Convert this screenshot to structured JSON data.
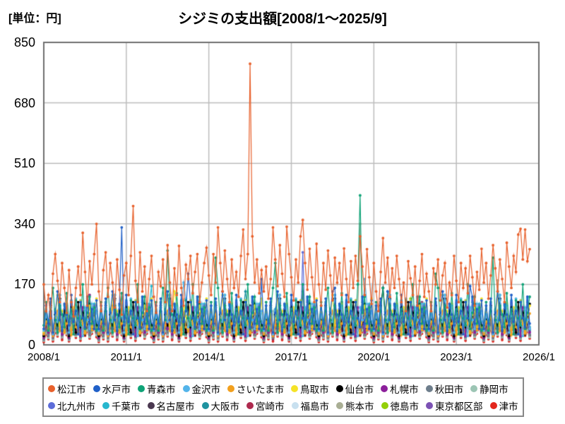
{
  "page": {
    "unit_label": "[単位：円]",
    "title": "シジミの支出額[2008/1～2025/9]"
  },
  "colors": {
    "grid": "#BDBDBD",
    "frame": "#6F6F6F",
    "legend_border": "#888888",
    "text": "#000000"
  },
  "chart_data": {
    "type": "line",
    "title": "シジミの支出額[2008/1～2025/9]",
    "ylabel": "円",
    "x_start": "2008/1",
    "x_end": "2025/9",
    "n_points": 213,
    "x_axis_total_months": 216,
    "x_ticks": [
      "2008/1",
      "2011/1",
      "2014/1",
      "2017/1",
      "2020/1",
      "2023/1",
      "2026/1"
    ],
    "x_tick_months": [
      0,
      36,
      72,
      108,
      144,
      180,
      216
    ],
    "y_ticks": [
      0,
      170,
      340,
      510,
      680,
      850
    ],
    "ylim": [
      0,
      850
    ],
    "grid": true,
    "legend_position": "bottom",
    "legend_rows": [
      [
        0,
        1,
        2,
        3,
        4,
        5,
        6,
        7,
        8,
        9
      ],
      [
        10,
        11,
        12,
        13,
        14,
        15,
        16,
        17,
        18,
        19
      ]
    ],
    "series": [
      {
        "name": "松江市",
        "color": "#E8612C",
        "values": [
          170,
          95,
          140,
          75,
          200,
          255,
          180,
          120,
          230,
          160,
          90,
          210,
          120,
          80,
          160,
          220,
          140,
          315,
          205,
          110,
          235,
          170,
          255,
          340,
          150,
          95,
          210,
          260,
          135,
          230,
          175,
          105,
          240,
          155,
          85,
          195,
          230,
          140,
          250,
          390,
          180,
          120,
          260,
          150,
          220,
          95,
          185,
          250,
          135,
          90,
          205,
          165,
          240,
          120,
          280,
          175,
          95,
          215,
          140,
          278,
          160,
          110,
          225,
          185,
          250,
          145,
          205,
          255,
          120,
          175,
          230,
          273,
          195,
          140,
          255,
          175,
          330,
          230,
          150,
          265,
          185,
          120,
          240,
          160,
          205,
          135,
          250,
          324,
          185,
          255,
          790,
          305,
          175,
          240,
          145,
          210,
          150,
          220,
          130,
          185,
          330,
          240,
          165,
          280,
          200,
          135,
          332,
          255,
          190,
          125,
          240,
          175,
          305,
          351,
          230,
          155,
          270,
          190,
          120,
          284,
          170,
          110,
          230,
          155,
          265,
          195,
          125,
          245,
          175,
          230,
          140,
          271,
          185,
          120,
          235,
          160,
          250,
          180,
          305,
          220,
          140,
          269,
          190,
          115,
          230,
          150,
          95,
          205,
          300,
          175,
          245,
          135,
          215,
          160,
          250,
          185,
          120,
          175,
          95,
          235,
          187,
          140,
          220,
          110,
          180,
          255,
          135,
          200,
          150,
          95,
          215,
          170,
          240,
          125,
          195,
          230,
          105,
          175,
          140,
          250,
          180,
          120,
          230,
          160,
          215,
          145,
          250,
          190,
          110,
          205,
          155,
          270,
          175,
          230,
          130,
          195,
          280,
          215,
          150,
          240,
          185,
          120,
          287,
          220,
          160,
          250,
          205,
          310,
          326,
          240,
          324,
          235,
          269
        ]
      },
      {
        "name": "水戸市",
        "color": "#2060C8",
        "pattern": [
          45,
          110,
          60,
          130,
          35,
          90,
          150,
          70,
          40,
          115,
          85,
          55,
          140,
          65,
          95,
          30,
          120,
          75,
          50,
          135,
          60,
          100,
          45,
          125
        ],
        "spikes": {
          "34": 330,
          "63": 200,
          "95": 185,
          "127": 160,
          "186": 165
        }
      },
      {
        "name": "青森市",
        "color": "#0FA377",
        "pattern": [
          55,
          120,
          40,
          95,
          160,
          70,
          35,
          110,
          85,
          50,
          145,
          65,
          100,
          30,
          125,
          75,
          55,
          170,
          45,
          90,
          135,
          60,
          105,
          40
        ],
        "spikes": {
          "54": 265,
          "75": 245,
          "101": 230,
          "138": 420,
          "171": 200,
          "196": 245
        }
      },
      {
        "name": "金沢市",
        "color": "#53B4EA",
        "pattern": [
          40,
          85,
          55,
          120,
          30,
          95,
          65,
          140,
          45,
          75,
          110,
          35,
          90,
          60,
          130,
          50,
          80,
          25,
          105,
          70,
          45,
          115,
          60,
          95
        ],
        "spikes": {
          "61": 175,
          "140": 185
        }
      },
      {
        "name": "さいたま市",
        "color": "#F2A01E",
        "pattern": [
          30,
          65,
          45,
          85,
          25,
          55,
          95,
          40,
          70,
          35,
          60,
          80,
          28,
          90,
          50,
          38,
          75,
          58,
          32,
          68,
          88,
          42,
          62,
          48
        ],
        "spikes": {
          "30": 110
        }
      },
      {
        "name": "鳥取市",
        "color": "#F5E327",
        "pattern": [
          35,
          90,
          50,
          120,
          35,
          75,
          140,
          55,
          95,
          40,
          115,
          65,
          30,
          105,
          80,
          45,
          125,
          60,
          35,
          85,
          110,
          50,
          70,
          130
        ],
        "spikes": {
          "57": 150
        }
      },
      {
        "name": "仙台市",
        "color": "#000000",
        "pattern": [
          25,
          70,
          45,
          110,
          30,
          85,
          55,
          130,
          40,
          95,
          60,
          25,
          105,
          75,
          35,
          120,
          50,
          90,
          30,
          65,
          115,
          45,
          80,
          55
        ],
        "spikes": {
          "148": 160
        }
      },
      {
        "name": "札幌市",
        "color": "#8C1F9B",
        "pattern": [
          20,
          60,
          35,
          90,
          25,
          70,
          45,
          110,
          30,
          80,
          55,
          20,
          95,
          65,
          40,
          85,
          25,
          105,
          50,
          75,
          35,
          60,
          90,
          45
        ],
        "spikes": {
          "20": 140
        }
      },
      {
        "name": "秋田市",
        "color": "#6E7E8C",
        "pattern": [
          15,
          45,
          25,
          65,
          20,
          50,
          35,
          80,
          28,
          55,
          40,
          18,
          70,
          48,
          30,
          60,
          22,
          75,
          38,
          52,
          28,
          45,
          65,
          35
        ],
        "spikes": {
          "130": 120
        }
      },
      {
        "name": "静岡市",
        "color": "#9CC5B4",
        "pattern": [
          12,
          35,
          20,
          50,
          15,
          40,
          28,
          60,
          22,
          45,
          32,
          14,
          55,
          38,
          25,
          48,
          18,
          58,
          30,
          42,
          22,
          36,
          52,
          28
        ],
        "spikes": {
          "100": 95
        }
      },
      {
        "name": "北九州市",
        "color": "#5C6CD9",
        "pattern": [
          30,
          80,
          45,
          115,
          35,
          95,
          60,
          130,
          40,
          100,
          70,
          30,
          120,
          85,
          50,
          105,
          38,
          90,
          55,
          125,
          45,
          75,
          110,
          60
        ],
        "spikes": {
          "113": 260
        }
      },
      {
        "name": "千葉市",
        "color": "#27B7CE",
        "pattern": [
          35,
          85,
          50,
          120,
          30,
          100,
          65,
          140,
          45,
          110,
          75,
          35,
          125,
          90,
          55,
          105,
          40,
          95,
          60,
          130,
          50,
          80,
          115,
          65
        ],
        "spikes": {
          "47": 165,
          "150": 150
        }
      },
      {
        "name": "名古屋市",
        "color": "#4A3850",
        "pattern": [
          15,
          50,
          30,
          70,
          20,
          55,
          40,
          85,
          25,
          60,
          45,
          18,
          75,
          52,
          32,
          65,
          22,
          80,
          42,
          58,
          28,
          48,
          68,
          38
        ],
        "spikes": {
          "90": 110
        }
      },
      {
        "name": "大阪市",
        "color": "#1F93A0",
        "pattern": [
          30,
          75,
          45,
          105,
          25,
          85,
          55,
          125,
          40,
          95,
          65,
          30,
          115,
          80,
          48,
          100,
          35,
          90,
          58,
          120,
          42,
          70,
          108,
          55
        ],
        "spikes": {
          "88": 150
        }
      },
      {
        "name": "宮崎市",
        "color": "#AE2A4E",
        "pattern": [
          12,
          40,
          22,
          60,
          15,
          48,
          32,
          75,
          20,
          52,
          38,
          14,
          65,
          45,
          28,
          58,
          18,
          70,
          35,
          50,
          25,
          42,
          62,
          30
        ],
        "spikes": {
          "165": 120
        }
      },
      {
        "name": "福島市",
        "color": "#C8E0EF",
        "pattern": [
          18,
          55,
          30,
          80,
          22,
          60,
          42,
          95,
          28,
          68,
          48,
          20,
          85,
          58,
          35,
          72,
          25,
          90,
          45,
          62,
          30,
          52,
          78,
          40
        ],
        "spikes": {
          "143": 170
        }
      },
      {
        "name": "熊本市",
        "color": "#A9AE94",
        "pattern": [
          15,
          48,
          28,
          68,
          18,
          55,
          38,
          85,
          24,
          60,
          44,
          16,
          75,
          52,
          32,
          65,
          20,
          80,
          40,
          56,
          26,
          46,
          70,
          34
        ],
        "spikes": {
          "138": 340,
          "198": 181
        }
      },
      {
        "name": "徳島市",
        "color": "#93CF08",
        "pattern": [
          18,
          52,
          30,
          75,
          20,
          58,
          40,
          90,
          26,
          64,
          46,
          18,
          80,
          55,
          34,
          68,
          22,
          85,
          42,
          60,
          28,
          50,
          74,
          36
        ],
        "spikes": {
          "160": 130
        }
      },
      {
        "name": "東京都区部",
        "color": "#7C52B4",
        "pattern": [
          25,
          65,
          40,
          95,
          28,
          72,
          50,
          115,
          35,
          80,
          58,
          25,
          100,
          70,
          42,
          88,
          30,
          105,
          52,
          78,
          38,
          62,
          92,
          48
        ],
        "spikes": {
          "113": 150
        }
      },
      {
        "name": "津市",
        "color": "#E3261D",
        "pattern": [
          8,
          30,
          16,
          45,
          10,
          35,
          24,
          55,
          14,
          40,
          28,
          10,
          48,
          34,
          20,
          44,
          12,
          52,
          26,
          38,
          18,
          32,
          46,
          22
        ],
        "spikes": {
          "75": 90
        }
      }
    ]
  }
}
